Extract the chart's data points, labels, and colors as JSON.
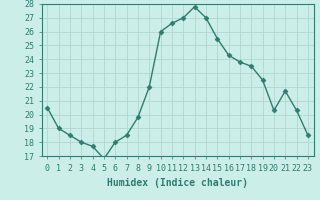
{
  "x": [
    0,
    1,
    2,
    3,
    4,
    5,
    6,
    7,
    8,
    9,
    10,
    11,
    12,
    13,
    14,
    15,
    16,
    17,
    18,
    19,
    20,
    21,
    22,
    23
  ],
  "y": [
    20.5,
    19.0,
    18.5,
    18.0,
    17.7,
    16.8,
    18.0,
    18.5,
    19.8,
    22.0,
    26.0,
    26.6,
    27.0,
    27.8,
    27.0,
    25.5,
    24.3,
    23.8,
    23.5,
    22.5,
    20.3,
    21.7,
    20.3,
    18.5
  ],
  "line_color": "#2e7d6e",
  "bg_color": "#cceee8",
  "grid_color": "#b0d8d0",
  "xlabel": "Humidex (Indice chaleur)",
  "ylim": [
    17,
    28
  ],
  "xlim": [
    -0.5,
    23.5
  ],
  "yticks": [
    17,
    18,
    19,
    20,
    21,
    22,
    23,
    24,
    25,
    26,
    27,
    28
  ],
  "xticks": [
    0,
    1,
    2,
    3,
    4,
    5,
    6,
    7,
    8,
    9,
    10,
    11,
    12,
    13,
    14,
    15,
    16,
    17,
    18,
    19,
    20,
    21,
    22,
    23
  ],
  "xtick_labels": [
    "0",
    "1",
    "2",
    "3",
    "4",
    "5",
    "6",
    "7",
    "8",
    "9",
    "10",
    "11",
    "12",
    "13",
    "14",
    "15",
    "16",
    "17",
    "18",
    "19",
    "20",
    "21",
    "22",
    "23"
  ],
  "marker": "D",
  "marker_size": 2.5,
  "line_width": 1.0,
  "tick_fontsize": 6.0,
  "xlabel_fontsize": 7.0
}
